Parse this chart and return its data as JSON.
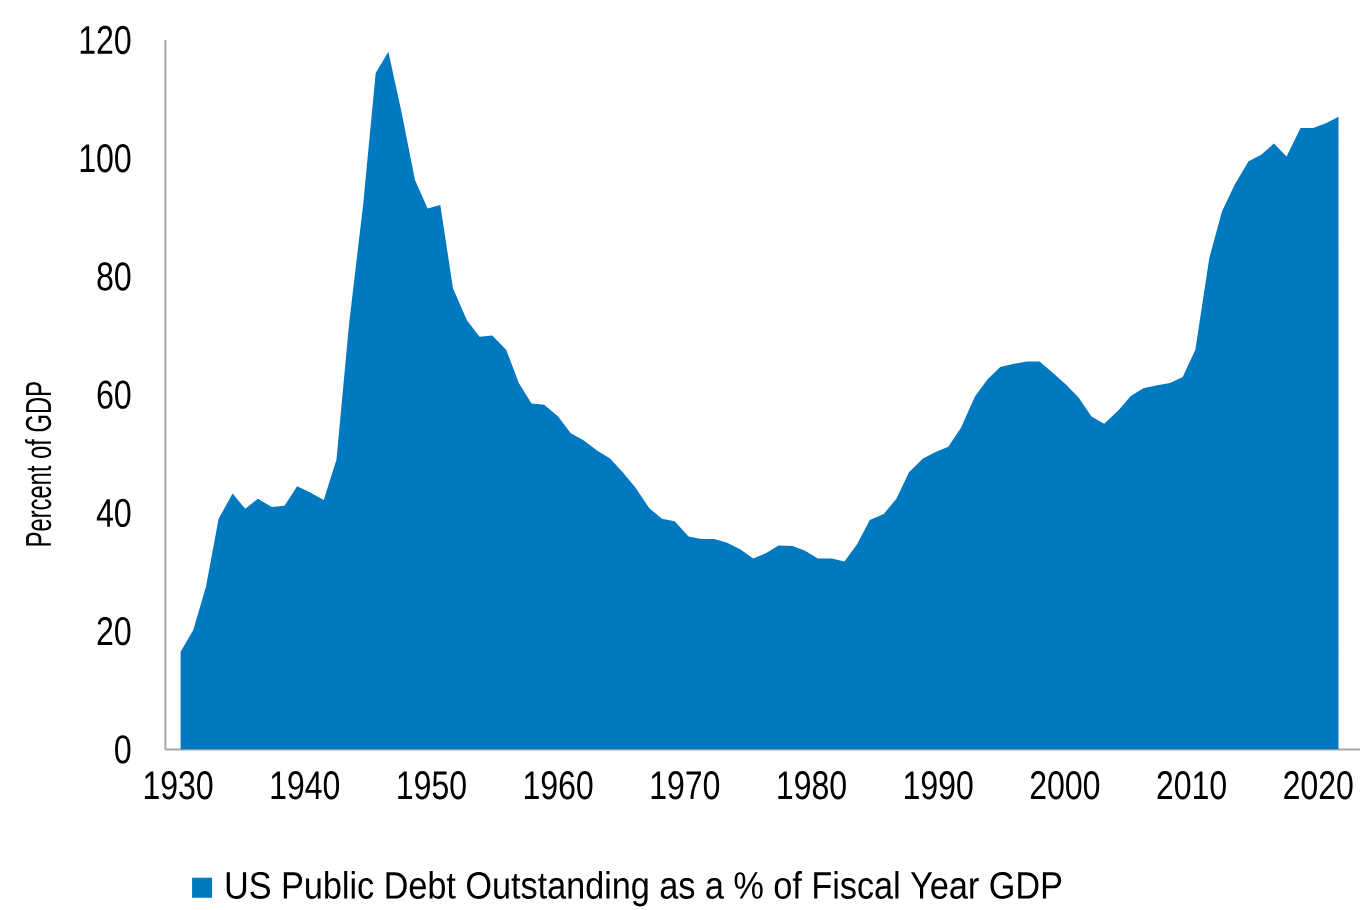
{
  "chart_data": {
    "type": "area",
    "ylabel": "Percent of GDP",
    "x": [
      1930.2,
      1931.2,
      1932.2,
      1933.2,
      1934.3,
      1935.3,
      1936.3,
      1937.4,
      1938.4,
      1939.4,
      1940.4,
      1941.5,
      1942.5,
      1943.5,
      1944.6,
      1945.6,
      1946.6,
      1947.6,
      1948.7,
      1949.7,
      1950.7,
      1951.7,
      1952.8,
      1953.8,
      1954.8,
      1955.9,
      1956.9,
      1957.9,
      1958.9,
      1960.0,
      1961.0,
      1962.0,
      1963.1,
      1964.1,
      1965.1,
      1966.1,
      1967.2,
      1968.2,
      1969.2,
      1970.3,
      1971.3,
      1972.3,
      1973.3,
      1974.4,
      1975.4,
      1976.4,
      1977.4,
      1978.5,
      1979.5,
      1980.5,
      1981.6,
      1982.6,
      1983.6,
      1984.6,
      1985.7,
      1986.7,
      1987.7,
      1988.8,
      1989.8,
      1990.8,
      1991.8,
      1992.9,
      1993.9,
      1994.9,
      1995.9,
      1997.0,
      1998.0,
      1999.0,
      2000.1,
      2001.1,
      2002.1,
      2003.1,
      2004.2,
      2005.2,
      2006.2,
      2007.3,
      2008.3,
      2009.3,
      2010.3,
      2011.4,
      2012.4,
      2013.4,
      2014.5,
      2015.5,
      2016.5,
      2017.5,
      2018.6,
      2019.6,
      2020.6,
      2021.6
    ],
    "series": [
      {
        "name": "US Public Debt Outstanding as a % of Fiscal Year GDP",
        "color": "#0079c1",
        "values": [
          16.5,
          20.2,
          27.5,
          39.0,
          43.3,
          40.7,
          42.4,
          41.0,
          41.2,
          44.5,
          43.5,
          42.2,
          49.0,
          72,
          92,
          114.4,
          118,
          108.2,
          96.3,
          91.5,
          92.1,
          78,
          72.6,
          69.8,
          70,
          67.6,
          62,
          58.5,
          58.3,
          56.3,
          53.5,
          52.3,
          50.5,
          49.2,
          46.9,
          44.3,
          40.8,
          39.0,
          38.6,
          36.0,
          35.6,
          35.6,
          35.0,
          33.8,
          32.3,
          33.2,
          34.5,
          34.4,
          33.6,
          32.3,
          32.3,
          31.8,
          34.7,
          38.8,
          39.8,
          42.4,
          46.9,
          49.2,
          50.3,
          51.2,
          54.4,
          59.7,
          62.6,
          64.7,
          65.2,
          65.6,
          65.6,
          63.8,
          61.7,
          59.5,
          56.3,
          55.1,
          57.3,
          59.8,
          61.1,
          61.6,
          62.0,
          63.0,
          67.6,
          83.1,
          91.0,
          95.5,
          99.5,
          100.6,
          102.5,
          100.3,
          105.1,
          105.1,
          105.9,
          107
        ]
      }
    ],
    "xlim": [
      1929,
      2023.3
    ],
    "ylim": [
      0,
      120
    ],
    "xticks": [
      1930,
      1940,
      1950,
      1960,
      1970,
      1980,
      1990,
      2000,
      2010,
      2020
    ],
    "yticks": [
      0,
      20,
      40,
      60,
      80,
      100,
      120
    ],
    "legend": "bottom"
  }
}
